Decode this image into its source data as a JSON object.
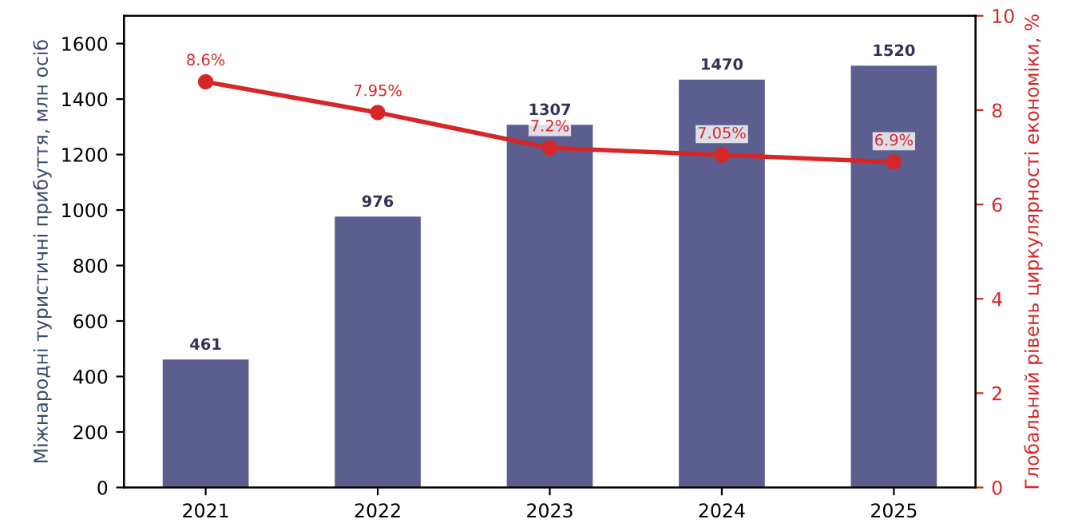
{
  "chart_data": {
    "type": "bar",
    "categories": [
      "2021",
      "2022",
      "2023",
      "2024",
      "2025"
    ],
    "ylabel": "Міжнародні туристичні прибуття, млн осіб",
    "y2label": "Глобальний рівень циркулярності економіки, %",
    "ylim": [
      0,
      1700
    ],
    "yticks": [
      0,
      200,
      400,
      600,
      800,
      1000,
      1200,
      1400,
      1600
    ],
    "y2lim": [
      0,
      10
    ],
    "y2ticks": [
      0,
      2,
      4,
      6,
      8,
      10
    ],
    "grid": false,
    "legend": false,
    "series": [
      {
        "color": "#5c5e8f",
        "values": [
          461,
          976,
          1307,
          1470,
          1520
        ],
        "value_labels": [
          "461",
          "976",
          "1307",
          "1470",
          "1520"
        ]
      },
      {
        "type": "line",
        "axis": "y2",
        "color": "#d62728",
        "marker": "circle",
        "values": [
          8.6,
          7.95,
          7.2,
          7.05,
          6.9
        ],
        "value_labels": [
          "8.6%",
          "7.95%",
          "7.2%",
          "7.05%",
          "6.9%"
        ]
      }
    ]
  }
}
